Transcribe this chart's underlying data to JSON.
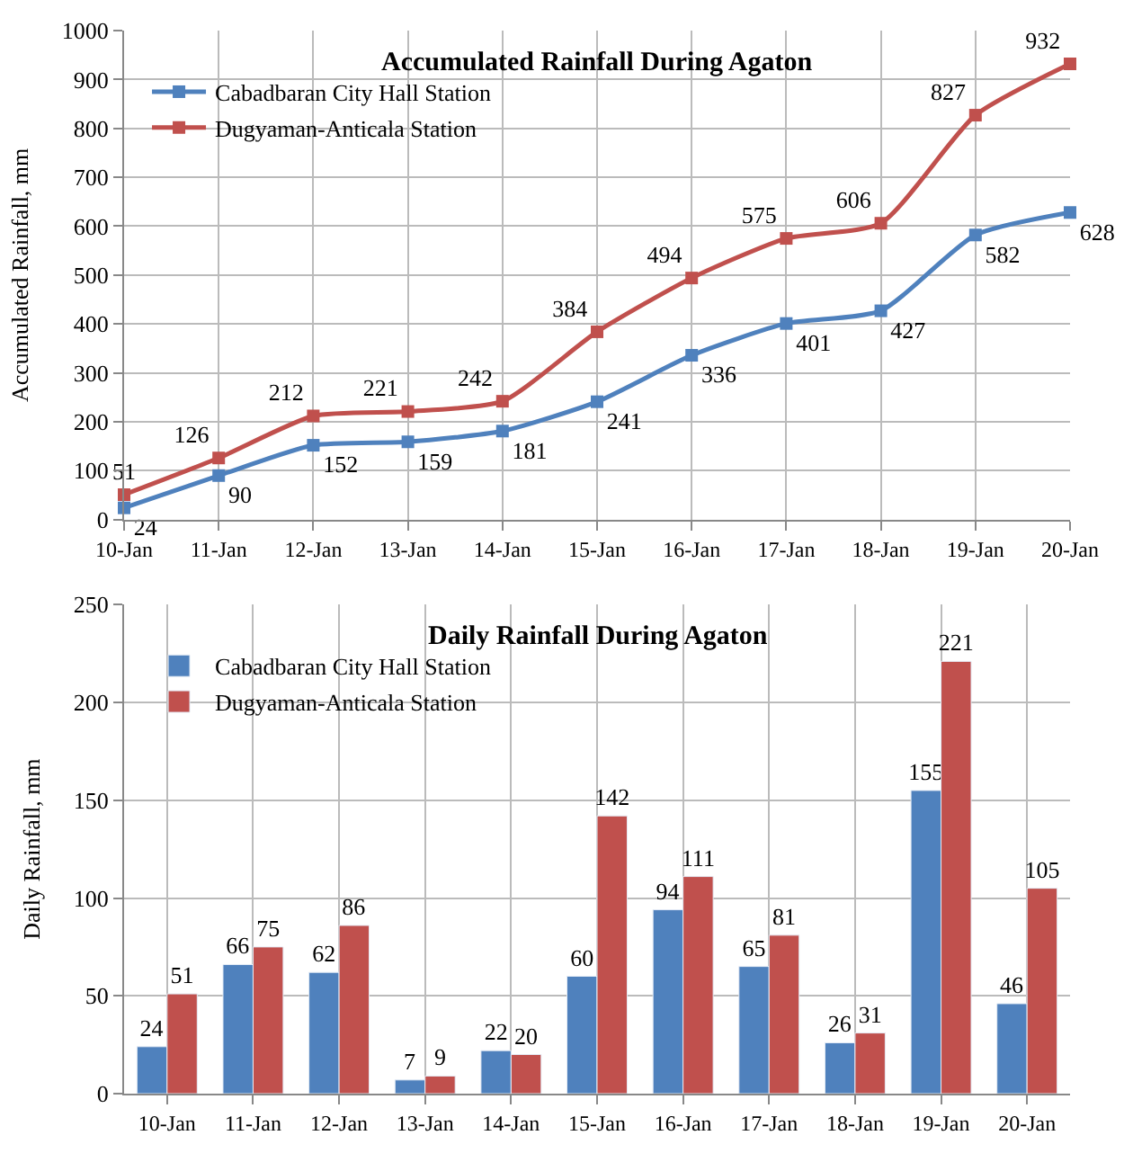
{
  "chart_data": [
    {
      "type": "line",
      "title": "Accumulated Rainfall During Agaton",
      "ylabel": "Accumulated Rainfall, mm",
      "categories": [
        "10-Jan",
        "11-Jan",
        "12-Jan",
        "13-Jan",
        "14-Jan",
        "15-Jan",
        "16-Jan",
        "17-Jan",
        "18-Jan",
        "19-Jan",
        "20-Jan"
      ],
      "series": [
        {
          "name": "Cabadbaran City Hall Station",
          "color": "#4f81bd",
          "values": [
            24,
            90,
            152,
            159,
            181,
            241,
            336,
            401,
            427,
            582,
            628
          ]
        },
        {
          "name": "Dugyaman-Anticala Station",
          "color": "#c0504d",
          "values": [
            51,
            126,
            212,
            221,
            242,
            384,
            494,
            575,
            606,
            827,
            932
          ]
        }
      ],
      "ylim": [
        0,
        1000
      ],
      "yticks": [
        0,
        100,
        200,
        300,
        400,
        500,
        600,
        700,
        800,
        900,
        1000
      ],
      "grid": true,
      "legend": "top left",
      "marker": "square",
      "line_style": "solid",
      "data_labels": true
    },
    {
      "type": "bar",
      "title": "Daily Rainfall During Agaton",
      "ylabel": "Daily Rainfall, mm",
      "categories": [
        "10-Jan",
        "11-Jan",
        "12-Jan",
        "13-Jan",
        "14-Jan",
        "15-Jan",
        "16-Jan",
        "17-Jan",
        "18-Jan",
        "19-Jan",
        "20-Jan"
      ],
      "series": [
        {
          "name": "Cabadbaran City Hall Station",
          "color": "#4f81bd",
          "values": [
            24,
            66,
            62,
            7,
            22,
            60,
            94,
            65,
            26,
            155,
            46
          ]
        },
        {
          "name": "Dugyaman-Anticala Station",
          "color": "#c0504d",
          "values": [
            51,
            75,
            86,
            9,
            20,
            142,
            111,
            81,
            31,
            221,
            105
          ]
        }
      ],
      "ylim": [
        0,
        250
      ],
      "yticks": [
        0,
        50,
        100,
        150,
        200,
        250
      ],
      "grid": true,
      "legend": "top left",
      "data_labels": true
    }
  ]
}
